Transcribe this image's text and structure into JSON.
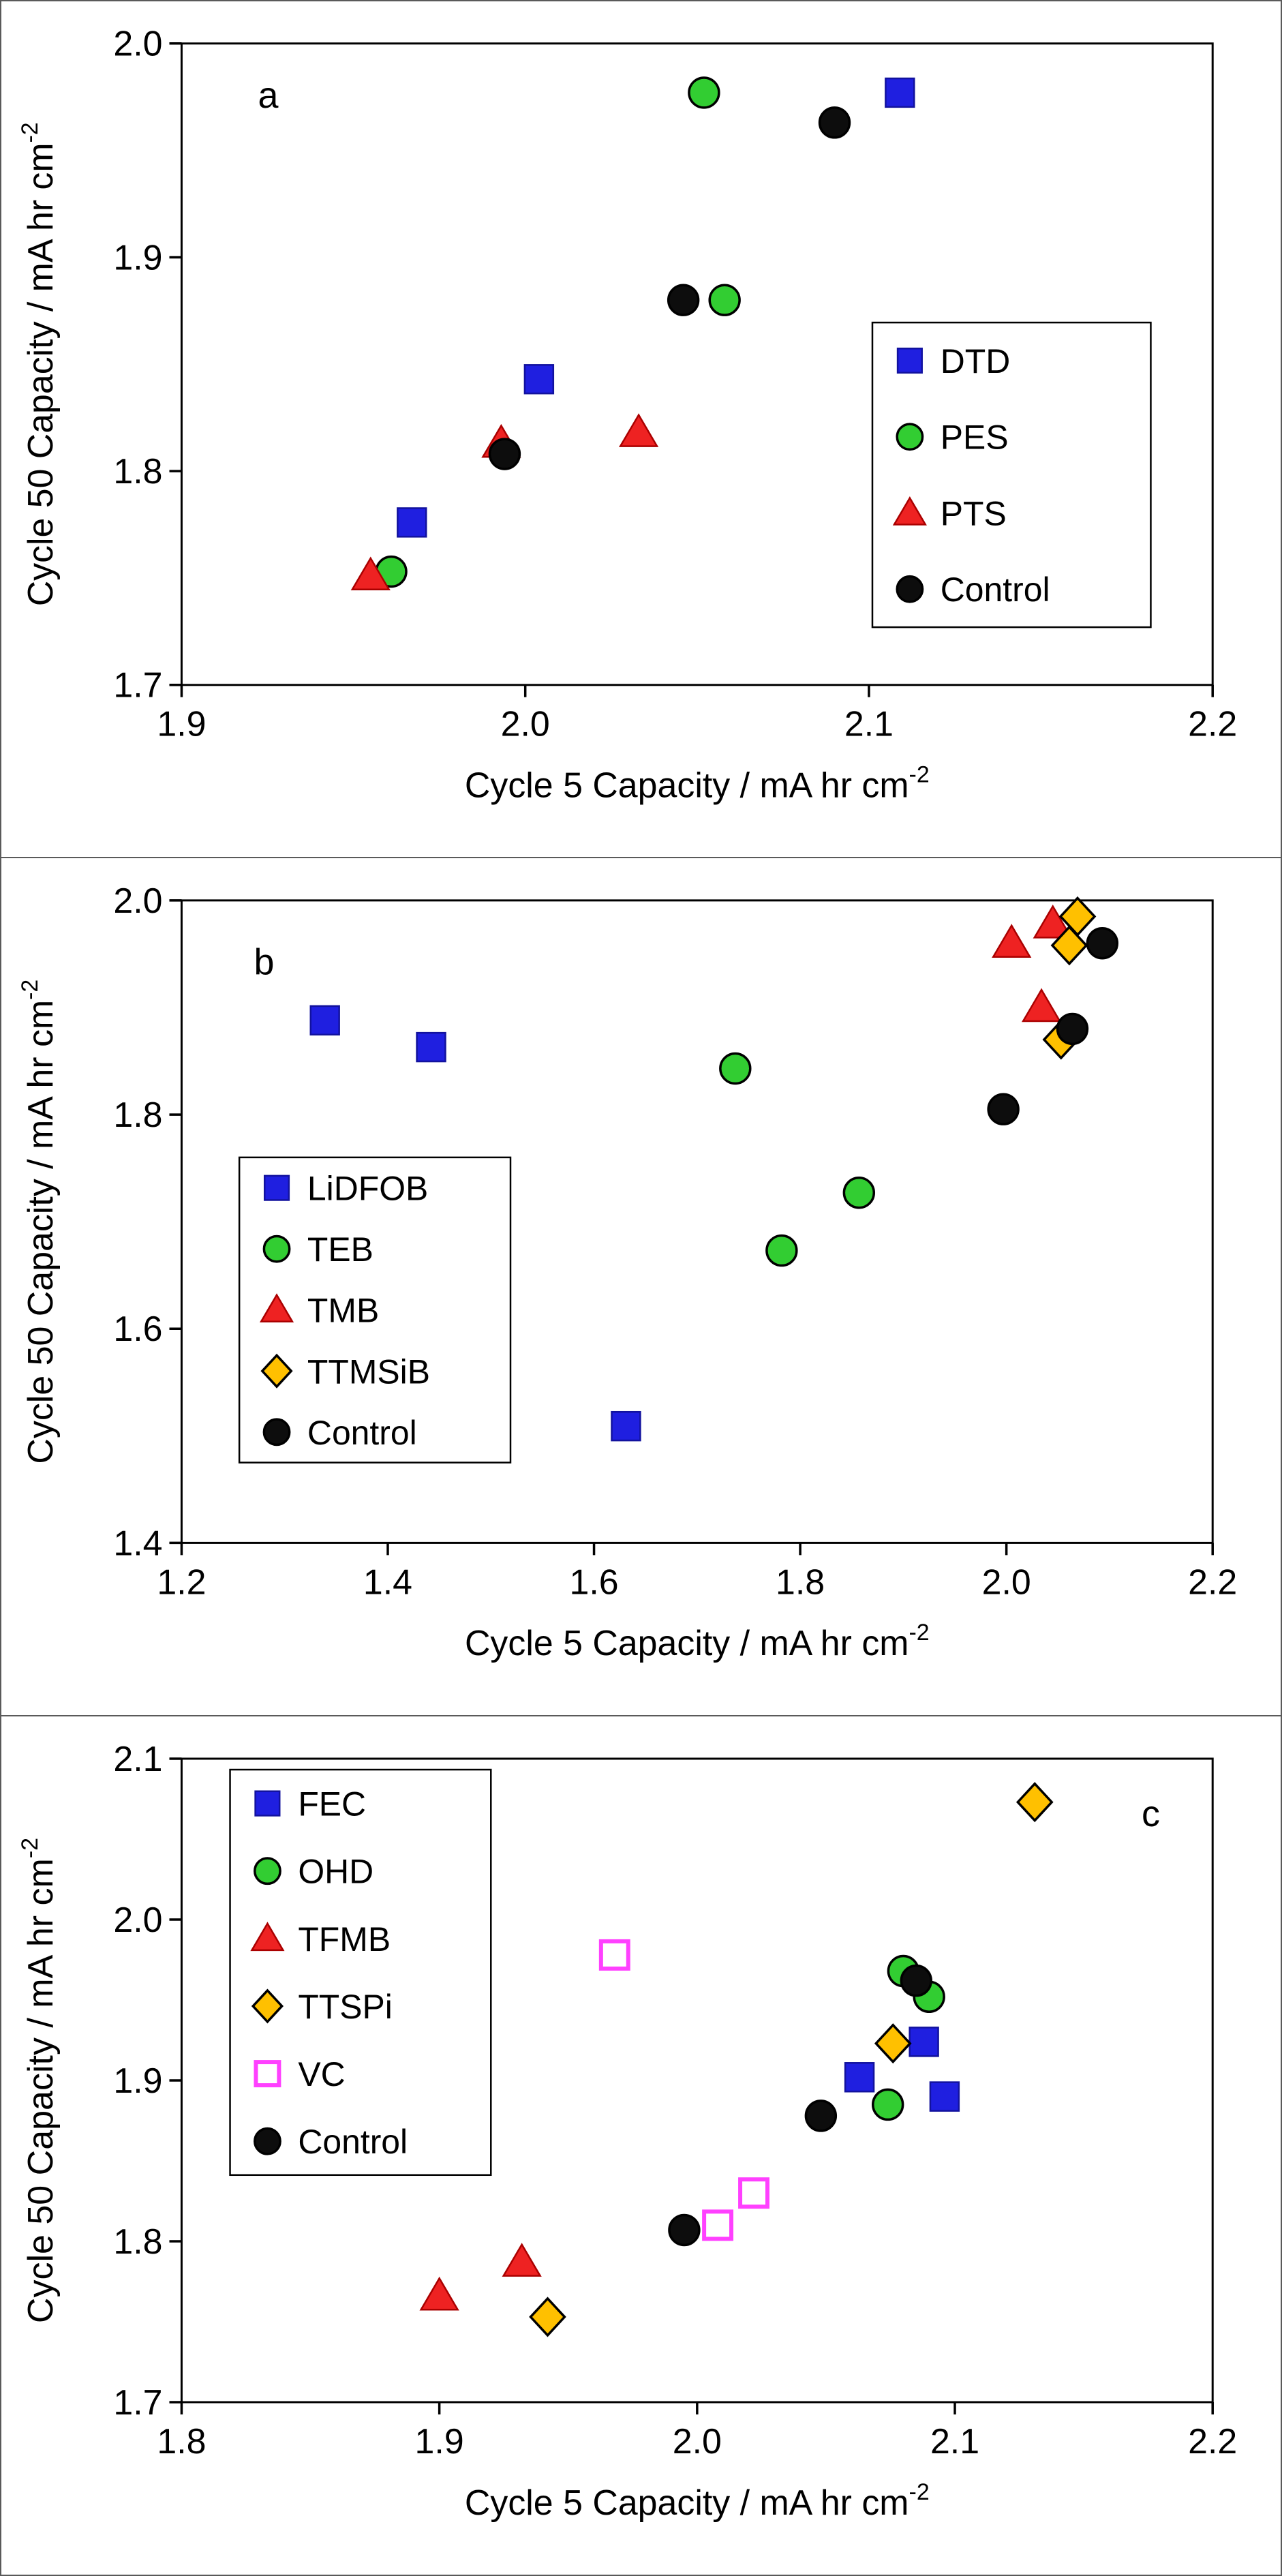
{
  "figure": {
    "background": "#ffffff",
    "frame_color": "#5a5a5a"
  },
  "chart_data": [
    {
      "type": "scatter",
      "panel_label": "a",
      "panel_label_pos": {
        "x": 0.084,
        "y": 0.1
      },
      "xlabel": "Cycle 5 Capacity / mA hr cm",
      "xlabel_superscript": "-2",
      "ylabel": "Cycle 50 Capacity / mA hr cm",
      "ylabel_superscript": "-2",
      "xlim": [
        1.9,
        2.2
      ],
      "ylim": [
        1.7,
        2.0
      ],
      "xtick_labels": [
        "1.9",
        "2.0",
        "2.1",
        "2.2"
      ],
      "ytick_labels": [
        "1.7",
        "1.8",
        "1.9",
        "2.0"
      ],
      "grid": false,
      "legend": {
        "position": "middle-right",
        "x": 0.67,
        "y": 0.435,
        "w": 0.27,
        "h": 0.475
      },
      "series": [
        {
          "name": "DTD",
          "marker": "square",
          "fill": "#1f1fe0",
          "edge": "#12129e",
          "points": [
            [
              1.967,
              1.776
            ],
            [
              2.004,
              1.843
            ],
            [
              2.109,
              1.977
            ]
          ]
        },
        {
          "name": "PES",
          "marker": "circle",
          "fill": "#32cd32",
          "edge": "#000000",
          "points": [
            [
              1.961,
              1.753
            ],
            [
              2.058,
              1.88
            ],
            [
              2.052,
              1.977
            ]
          ]
        },
        {
          "name": "PTS",
          "marker": "triangle",
          "fill": "#ee2222",
          "edge": "#aa0000",
          "points": [
            [
              1.955,
              1.751
            ],
            [
              1.993,
              1.813
            ],
            [
              2.033,
              1.818
            ]
          ]
        },
        {
          "name": "Control",
          "marker": "circle",
          "fill": "#0d0d0d",
          "edge": "#000000",
          "points": [
            [
              1.994,
              1.808
            ],
            [
              2.046,
              1.88
            ],
            [
              2.09,
              1.963
            ]
          ]
        }
      ]
    },
    {
      "type": "scatter",
      "panel_label": "b",
      "panel_label_pos": {
        "x": 0.08,
        "y": 0.115
      },
      "xlabel": "Cycle 5 Capacity / mA hr cm",
      "xlabel_superscript": "-2",
      "ylabel": "Cycle 50 Capacity / mA hr cm",
      "ylabel_superscript": "-2",
      "xlim": [
        1.2,
        2.2
      ],
      "ylim": [
        1.4,
        2.0
      ],
      "xtick_labels": [
        "1.2",
        "1.4",
        "1.6",
        "1.8",
        "2.0",
        "2.2"
      ],
      "ytick_labels": [
        "1.4",
        "1.6",
        "1.8",
        "2.0"
      ],
      "grid": false,
      "legend": {
        "position": "middle-left",
        "x": 0.056,
        "y": 0.4,
        "w": 0.263,
        "h": 0.475
      },
      "series": [
        {
          "name": "LiDFOB",
          "marker": "square",
          "fill": "#1f1fe0",
          "edge": "#12129e",
          "points": [
            [
              1.339,
              1.888
            ],
            [
              1.442,
              1.863
            ],
            [
              1.631,
              1.509
            ]
          ]
        },
        {
          "name": "TEB",
          "marker": "circle",
          "fill": "#32cd32",
          "edge": "#000000",
          "points": [
            [
              1.737,
              1.843
            ],
            [
              1.782,
              1.673
            ],
            [
              1.857,
              1.727
            ]
          ]
        },
        {
          "name": "TMB",
          "marker": "triangle",
          "fill": "#ee2222",
          "edge": "#aa0000",
          "points": [
            [
              2.005,
              1.96
            ],
            [
              2.045,
              1.978
            ],
            [
              2.034,
              1.9
            ]
          ]
        },
        {
          "name": "TTMSiB",
          "marker": "diamond",
          "fill": "#ffc000",
          "edge": "#000000",
          "points": [
            [
              2.069,
              1.985
            ],
            [
              2.061,
              1.958
            ],
            [
              2.053,
              1.87
            ]
          ]
        },
        {
          "name": "Control",
          "marker": "circle",
          "fill": "#0d0d0d",
          "edge": "#000000",
          "points": [
            [
              1.997,
              1.805
            ],
            [
              2.064,
              1.88
            ],
            [
              2.093,
              1.96
            ]
          ]
        }
      ]
    },
    {
      "type": "scatter",
      "panel_label": "c",
      "panel_label_pos": {
        "x": 0.94,
        "y": 0.105
      },
      "xlabel": "Cycle 5 Capacity / mA hr cm",
      "xlabel_superscript": "-2",
      "ylabel": "Cycle 50 Capacity / mA hr cm",
      "ylabel_superscript": "-2",
      "xlim": [
        1.8,
        2.2
      ],
      "ylim": [
        1.7,
        2.1
      ],
      "xtick_labels": [
        "1.8",
        "1.9",
        "2.0",
        "2.1",
        "2.2"
      ],
      "ytick_labels": [
        "1.7",
        "1.8",
        "1.9",
        "2.0",
        "2.1"
      ],
      "grid": false,
      "legend": {
        "position": "top-left",
        "x": 0.047,
        "y": 0.017,
        "w": 0.253,
        "h": 0.63
      },
      "series": [
        {
          "name": "FEC",
          "marker": "square",
          "fill": "#1f1fe0",
          "edge": "#12129e",
          "points": [
            [
              2.063,
              1.902
            ],
            [
              2.088,
              1.924
            ],
            [
              2.096,
              1.89
            ]
          ]
        },
        {
          "name": "OHD",
          "marker": "circle",
          "fill": "#32cd32",
          "edge": "#000000",
          "points": [
            [
              2.08,
              1.968
            ],
            [
              2.09,
              1.952
            ],
            [
              2.074,
              1.885
            ]
          ]
        },
        {
          "name": "TFMB",
          "marker": "triangle",
          "fill": "#ee2222",
          "edge": "#aa0000",
          "points": [
            [
              1.9,
              1.766
            ],
            [
              1.932,
              1.787
            ]
          ]
        },
        {
          "name": "TTSPi",
          "marker": "diamond",
          "fill": "#ffc000",
          "edge": "#000000",
          "points": [
            [
              1.942,
              1.753
            ],
            [
              2.076,
              1.923
            ],
            [
              2.131,
              2.073
            ]
          ]
        },
        {
          "name": "VC",
          "marker": "open-square",
          "fill": "none",
          "edge": "#ff40ff",
          "points": [
            [
              1.968,
              1.978
            ],
            [
              2.008,
              1.81
            ],
            [
              2.022,
              1.83
            ]
          ]
        },
        {
          "name": "Control",
          "marker": "circle",
          "fill": "#0d0d0d",
          "edge": "#000000",
          "points": [
            [
              1.995,
              1.807
            ],
            [
              2.048,
              1.878
            ],
            [
              2.085,
              1.962
            ]
          ]
        }
      ]
    }
  ]
}
